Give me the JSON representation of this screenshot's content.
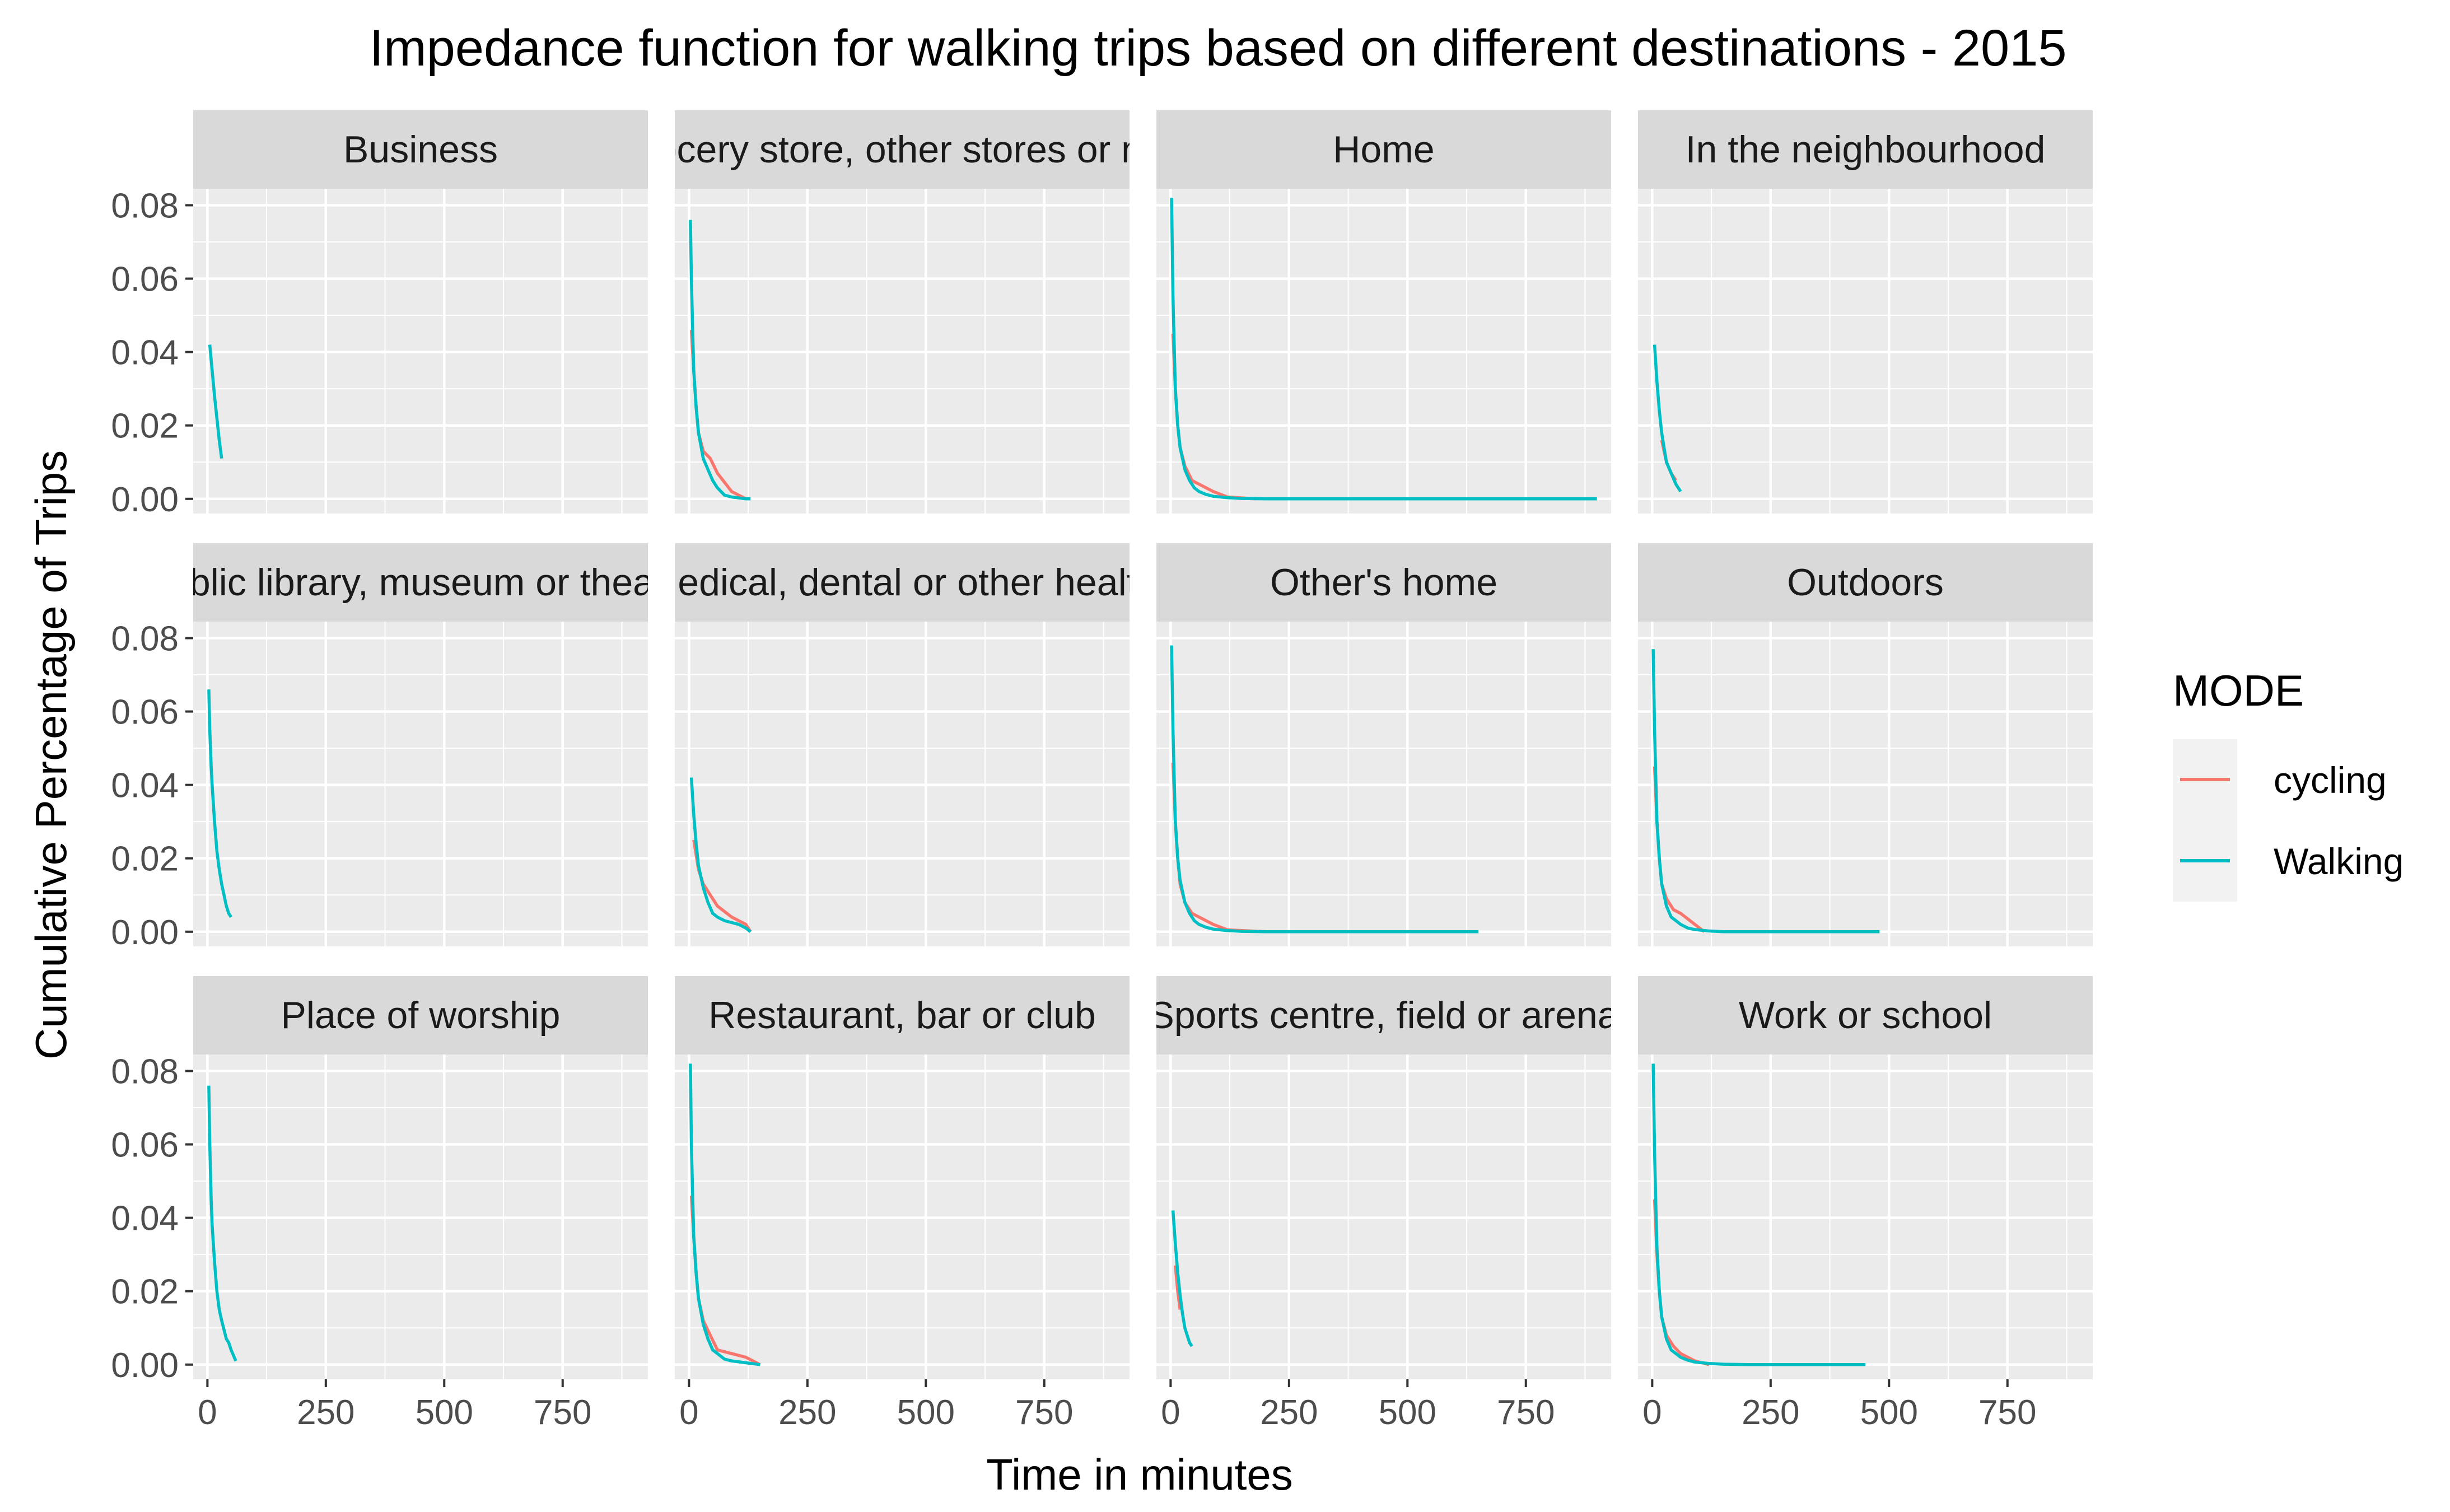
{
  "chart_data": {
    "type": "line",
    "title": "Impedance function for walking trips based on different destinations - 2015",
    "xlabel": "Time in minutes",
    "ylabel": "Cumulative Percentage of Trips",
    "xlim": [
      -30,
      930
    ],
    "ylim": [
      -0.004,
      0.0845
    ],
    "x_ticks": [
      0,
      250,
      500,
      750
    ],
    "x_tick_labels": [
      "0",
      "250",
      "500",
      "750"
    ],
    "y_ticks": [
      0,
      0.02,
      0.04,
      0.06,
      0.08
    ],
    "y_tick_labels": [
      "0.00",
      "0.02",
      "0.04",
      "0.06",
      "0.08"
    ],
    "grid": true,
    "legend": {
      "title": "MODE",
      "position": "right",
      "entries": [
        {
          "label": "cycling",
          "color": "#F8766D"
        },
        {
          "label": "Walking",
          "color": "#00BFC4"
        }
      ]
    },
    "colors": {
      "cycling": "#F8766D",
      "Walking": "#00BFC4",
      "panel": "#EBEBEB",
      "strip": "#D9D9D9",
      "grid": "#FFFFFF"
    },
    "panels": [
      {
        "label": "Business",
        "series": [
          {
            "name": "Walking",
            "x": [
              5,
              10,
              15,
              20,
              25,
              30
            ],
            "y": [
              0.042,
              0.035,
              0.028,
              0.022,
              0.016,
              0.011
            ]
          }
        ]
      },
      {
        "label": "Grocery store, other stores or mall",
        "series": [
          {
            "name": "cycling",
            "x": [
              5,
              10,
              15,
              20,
              30,
              45,
              60,
              90,
              120
            ],
            "y": [
              0.046,
              0.035,
              0.025,
              0.018,
              0.013,
              0.011,
              0.007,
              0.002,
              0.0
            ]
          },
          {
            "name": "Walking",
            "x": [
              3,
              5,
              8,
              10,
              15,
              20,
              30,
              40,
              50,
              60,
              75,
              90,
              120,
              130
            ],
            "y": [
              0.076,
              0.06,
              0.045,
              0.035,
              0.025,
              0.018,
              0.011,
              0.008,
              0.005,
              0.003,
              0.001,
              0.0005,
              0.0,
              0.0
            ]
          }
        ]
      },
      {
        "label": "Home",
        "series": [
          {
            "name": "cycling",
            "x": [
              5,
              10,
              15,
              20,
              30,
              45,
              60,
              90,
              120,
              180
            ],
            "y": [
              0.045,
              0.03,
              0.02,
              0.014,
              0.009,
              0.005,
              0.004,
              0.002,
              0.0005,
              0.0
            ]
          },
          {
            "name": "Walking",
            "x": [
              2,
              5,
              8,
              10,
              15,
              20,
              30,
              40,
              50,
              60,
              75,
              90,
              120,
              150,
              200,
              300,
              500,
              700,
              900
            ],
            "y": [
              0.082,
              0.055,
              0.04,
              0.03,
              0.02,
              0.014,
              0.008,
              0.005,
              0.003,
              0.002,
              0.0012,
              0.0007,
              0.0003,
              0.0001,
              0.0,
              0.0,
              0.0,
              0.0,
              0.0
            ]
          }
        ]
      },
      {
        "label": "In the neighbourhood",
        "series": [
          {
            "name": "cycling",
            "x": [
              20,
              30,
              40,
              50
            ],
            "y": [
              0.016,
              0.01,
              0.007,
              0.005
            ]
          },
          {
            "name": "Walking",
            "x": [
              5,
              10,
              15,
              20,
              25,
              30,
              40,
              50,
              60
            ],
            "y": [
              0.042,
              0.032,
              0.024,
              0.018,
              0.014,
              0.01,
              0.007,
              0.004,
              0.002
            ]
          }
        ]
      },
      {
        "label": "Public library, museum or theatre",
        "series": [
          {
            "name": "Walking",
            "x": [
              3,
              5,
              8,
              10,
              15,
              20,
              25,
              30,
              35,
              40,
              45,
              50
            ],
            "y": [
              0.066,
              0.055,
              0.045,
              0.04,
              0.03,
              0.022,
              0.017,
              0.013,
              0.01,
              0.007,
              0.005,
              0.004
            ]
          }
        ]
      },
      {
        "label": "Medical, dental or other health",
        "series": [
          {
            "name": "cycling",
            "x": [
              10,
              20,
              30,
              45,
              60,
              90,
              120,
              130
            ],
            "y": [
              0.025,
              0.017,
              0.013,
              0.01,
              0.007,
              0.004,
              0.002,
              0.0
            ]
          },
          {
            "name": "Walking",
            "x": [
              5,
              10,
              15,
              20,
              30,
              40,
              50,
              60,
              75,
              90,
              105,
              120,
              130
            ],
            "y": [
              0.042,
              0.032,
              0.024,
              0.018,
              0.012,
              0.008,
              0.005,
              0.004,
              0.003,
              0.0025,
              0.002,
              0.001,
              0.0
            ]
          }
        ]
      },
      {
        "label": "Other's home",
        "series": [
          {
            "name": "cycling",
            "x": [
              5,
              10,
              15,
              20,
              30,
              45,
              60,
              90,
              120,
              200
            ],
            "y": [
              0.046,
              0.03,
              0.02,
              0.013,
              0.008,
              0.005,
              0.004,
              0.002,
              0.0005,
              0.0
            ]
          },
          {
            "name": "Walking",
            "x": [
              2,
              5,
              8,
              10,
              15,
              20,
              30,
              40,
              50,
              60,
              75,
              90,
              120,
              150,
              200,
              300,
              400,
              500,
              650
            ],
            "y": [
              0.078,
              0.055,
              0.04,
              0.03,
              0.02,
              0.014,
              0.008,
              0.005,
              0.003,
              0.002,
              0.0012,
              0.0007,
              0.0003,
              0.0001,
              0.0,
              0.0,
              0.0,
              0.0,
              0.0
            ]
          }
        ]
      },
      {
        "label": "Outdoors",
        "series": [
          {
            "name": "cycling",
            "x": [
              5,
              10,
              15,
              20,
              30,
              45,
              60,
              90,
              110
            ],
            "y": [
              0.045,
              0.03,
              0.02,
              0.013,
              0.009,
              0.006,
              0.005,
              0.002,
              0.0
            ]
          },
          {
            "name": "Walking",
            "x": [
              2,
              5,
              8,
              10,
              15,
              20,
              30,
              40,
              50,
              60,
              75,
              90,
              120,
              150,
              200,
              300,
              400,
              480
            ],
            "y": [
              0.077,
              0.055,
              0.04,
              0.03,
              0.02,
              0.013,
              0.007,
              0.004,
              0.003,
              0.002,
              0.001,
              0.0006,
              0.0002,
              0.0,
              0.0,
              0.0,
              0.0,
              0.0
            ]
          }
        ]
      },
      {
        "label": "Place of worship",
        "series": [
          {
            "name": "Walking",
            "x": [
              3,
              5,
              8,
              10,
              15,
              20,
              25,
              30,
              40,
              45,
              50,
              60
            ],
            "y": [
              0.076,
              0.06,
              0.045,
              0.038,
              0.028,
              0.02,
              0.015,
              0.012,
              0.007,
              0.006,
              0.004,
              0.001
            ]
          }
        ]
      },
      {
        "label": "Restaurant, bar or club",
        "series": [
          {
            "name": "cycling",
            "x": [
              5,
              10,
              15,
              20,
              30,
              45,
              60,
              90,
              120,
              150
            ],
            "y": [
              0.046,
              0.035,
              0.025,
              0.018,
              0.012,
              0.008,
              0.004,
              0.003,
              0.002,
              0.0
            ]
          },
          {
            "name": "Walking",
            "x": [
              3,
              5,
              8,
              10,
              15,
              20,
              30,
              40,
              50,
              60,
              75,
              90,
              120,
              150
            ],
            "y": [
              0.082,
              0.06,
              0.045,
              0.035,
              0.025,
              0.018,
              0.011,
              0.007,
              0.004,
              0.003,
              0.0015,
              0.001,
              0.0005,
              0.0
            ]
          }
        ]
      },
      {
        "label": "Sports centre, field or arena",
        "series": [
          {
            "name": "cycling",
            "x": [
              10,
              15,
              20
            ],
            "y": [
              0.027,
              0.02,
              0.015
            ]
          },
          {
            "name": "Walking",
            "x": [
              5,
              10,
              15,
              20,
              25,
              30,
              35,
              40,
              45
            ],
            "y": [
              0.042,
              0.033,
              0.025,
              0.019,
              0.014,
              0.01,
              0.008,
              0.006,
              0.005
            ]
          }
        ]
      },
      {
        "label": "Work or school",
        "series": [
          {
            "name": "cycling",
            "x": [
              5,
              10,
              15,
              20,
              30,
              45,
              60,
              90,
              120
            ],
            "y": [
              0.045,
              0.03,
              0.02,
              0.013,
              0.008,
              0.005,
              0.003,
              0.001,
              0.0
            ]
          },
          {
            "name": "Walking",
            "x": [
              2,
              5,
              8,
              10,
              15,
              20,
              30,
              40,
              50,
              60,
              75,
              90,
              120,
              150,
              200,
              300,
              400,
              450
            ],
            "y": [
              0.082,
              0.058,
              0.042,
              0.032,
              0.02,
              0.013,
              0.007,
              0.004,
              0.003,
              0.002,
              0.0012,
              0.0007,
              0.0003,
              0.0001,
              0.0,
              0.0,
              0.0,
              0.0
            ]
          }
        ]
      }
    ]
  }
}
